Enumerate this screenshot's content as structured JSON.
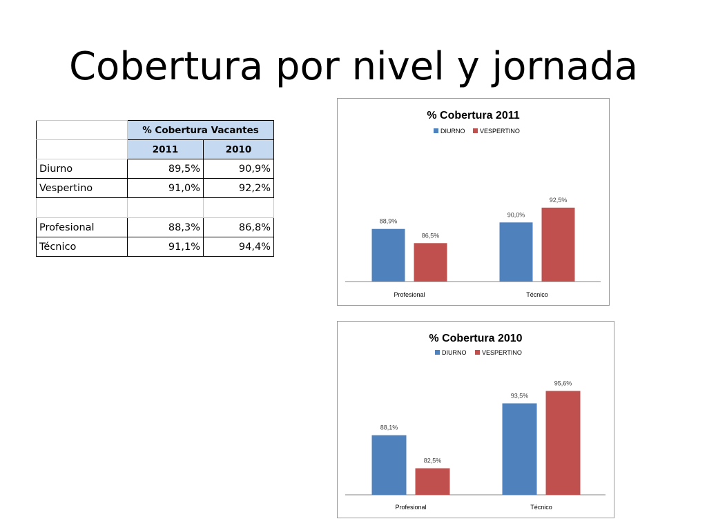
{
  "slide": {
    "title": "Cobertura por nivel y jornada"
  },
  "table": {
    "group_header": "% Cobertura Vacantes",
    "years": [
      "2011",
      "2010"
    ],
    "rows_a": [
      {
        "label": "Diurno",
        "v2011": "89,5%",
        "v2010": "90,9%"
      },
      {
        "label": "Vespertino",
        "v2011": "91,0%",
        "v2010": "92,2%"
      }
    ],
    "rows_b": [
      {
        "label": "Profesional",
        "v2011": "88,3%",
        "v2010": "86,8%"
      },
      {
        "label": "Técnico",
        "v2011": "91,1%",
        "v2010": "94,4%"
      }
    ]
  },
  "colors": {
    "diurno": "#4f81bd",
    "vespertino": "#c0504d",
    "frame": "#9a9a9a"
  },
  "chart_data": [
    {
      "type": "bar",
      "title": "% Cobertura 2011",
      "categories": [
        "Profesional",
        "Técnico"
      ],
      "series": [
        {
          "name": "DIURNO",
          "values": [
            88.9,
            90.0
          ],
          "labels": [
            "88,9%",
            "90,0%"
          ]
        },
        {
          "name": "VESPERTINO",
          "values": [
            86.5,
            92.5
          ],
          "labels": [
            "86,5%",
            "92,5%"
          ]
        }
      ],
      "legend": "top",
      "grid": false
    },
    {
      "type": "bar",
      "title": "% Cobertura 2010",
      "categories": [
        "Profesional",
        "Técnico"
      ],
      "series": [
        {
          "name": "DIURNO",
          "values": [
            88.1,
            93.5
          ],
          "labels": [
            "88,1%",
            "93,5%"
          ]
        },
        {
          "name": "VESPERTINO",
          "values": [
            82.5,
            95.6
          ],
          "labels": [
            "82,5%",
            "95,6%"
          ]
        }
      ],
      "legend": "top",
      "grid": false
    }
  ]
}
